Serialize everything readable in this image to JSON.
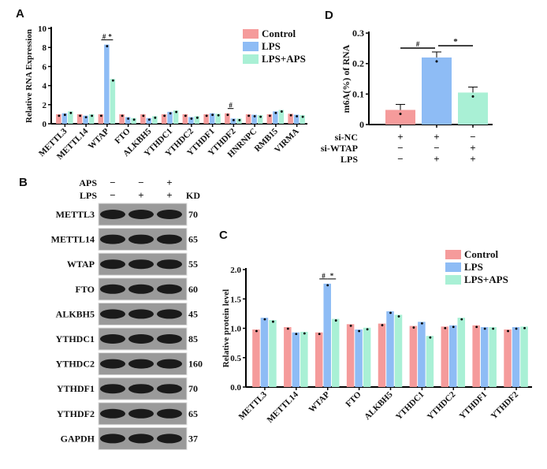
{
  "panel_labels": {
    "a": "A",
    "b": "B",
    "c": "C",
    "d": "D"
  },
  "colors": {
    "control": "#f59b9b",
    "lps": "#8ebcf5",
    "lps_aps": "#a9f0d5",
    "band": "#1a1a1a",
    "blot_bg": "#9a9a9a"
  },
  "chart_data": [
    {
      "panel": "A",
      "type": "bar",
      "ylabel": "Relative RNA Expression",
      "ylim": [
        0,
        10
      ],
      "yticks": [
        0,
        2,
        4,
        6,
        8,
        10
      ],
      "categories": [
        "METTL3",
        "METTL14",
        "WTAP",
        "FTO",
        "ALKBH5",
        "YTHDC1",
        "YTHDC2",
        "YTHDF1",
        "YTHDF2",
        "HNRNPC",
        "RMB15",
        "VIRMA"
      ],
      "series": [
        {
          "name": "Control",
          "values": [
            1.0,
            1.0,
            1.0,
            1.0,
            1.0,
            1.0,
            1.0,
            1.0,
            1.1,
            1.0,
            1.0,
            1.05
          ]
        },
        {
          "name": "LPS",
          "values": [
            1.1,
            0.85,
            8.3,
            0.7,
            0.6,
            1.25,
            0.7,
            1.1,
            0.55,
            0.95,
            1.3,
            0.95
          ]
        },
        {
          "name": "LPS+APS",
          "values": [
            1.3,
            1.0,
            4.7,
            0.6,
            0.8,
            1.4,
            0.8,
            1.05,
            0.55,
            0.9,
            1.45,
            0.9
          ]
        }
      ],
      "legend": "top-right",
      "annotations": [
        {
          "category": "WTAP",
          "text": "#"
        },
        {
          "category": "WTAP",
          "text": "*"
        },
        {
          "category": "YTHDF2",
          "text": "#"
        }
      ]
    },
    {
      "panel": "C",
      "type": "bar",
      "ylabel": "Relative protein level",
      "ylim": [
        0,
        2.0
      ],
      "yticks": [
        "0.0",
        "0.5",
        "1.0",
        "1.5",
        "2.0"
      ],
      "categories": [
        "METTL3",
        "METTL14",
        "WTAP",
        "FTO",
        "ALKBH5",
        "YTHDC1",
        "YTHDC2",
        "YTHDF1",
        "YTHDF2"
      ],
      "series": [
        {
          "name": "Control",
          "values": [
            0.98,
            1.02,
            0.93,
            1.07,
            1.08,
            1.04,
            1.03,
            1.05,
            0.98
          ]
        },
        {
          "name": "LPS",
          "values": [
            1.18,
            0.93,
            1.76,
            0.98,
            1.29,
            1.11,
            1.05,
            1.02,
            1.02
          ]
        },
        {
          "name": "LPS+APS",
          "values": [
            1.14,
            0.94,
            1.16,
            1.01,
            1.23,
            0.87,
            1.18,
            1.02,
            1.03
          ]
        }
      ],
      "legend": "top-right",
      "annotations": [
        {
          "category": "WTAP",
          "text": "#"
        },
        {
          "category": "WTAP",
          "text": "*"
        }
      ]
    },
    {
      "panel": "D",
      "type": "bar",
      "ylabel": "m6A(%) of RNA",
      "ylim": [
        0,
        0.3
      ],
      "yticks": [
        "0",
        "0.1",
        "0.2",
        "0.3"
      ],
      "values": [
        0.048,
        0.22,
        0.105
      ],
      "conditions": [
        {
          "label": "si-NC",
          "signs": [
            "+",
            "+",
            "−"
          ]
        },
        {
          "label": "si-WTAP",
          "signs": [
            "−",
            "−",
            "+"
          ]
        },
        {
          "label": "LPS",
          "signs": [
            "−",
            "+",
            "+"
          ]
        }
      ],
      "annotations": [
        "#",
        "*"
      ]
    }
  ],
  "blot": {
    "treatments": [
      {
        "label": "APS",
        "signs": [
          "−",
          "−",
          "+"
        ]
      },
      {
        "label": "LPS",
        "signs": [
          "−",
          "+",
          "+"
        ]
      }
    ],
    "kd_label": "KD",
    "rows": [
      {
        "protein": "METTL3",
        "kd": "70"
      },
      {
        "protein": "METTL14",
        "kd": "65"
      },
      {
        "protein": "WTAP",
        "kd": "55"
      },
      {
        "protein": "FTO",
        "kd": "60"
      },
      {
        "protein": "ALKBH5",
        "kd": "45"
      },
      {
        "protein": "YTHDC1",
        "kd": "85"
      },
      {
        "protein": "YTHDC2",
        "kd": "160"
      },
      {
        "protein": "YTHDF1",
        "kd": "70"
      },
      {
        "protein": "YTHDF2",
        "kd": "65"
      },
      {
        "protein": "GAPDH",
        "kd": "37"
      }
    ]
  }
}
